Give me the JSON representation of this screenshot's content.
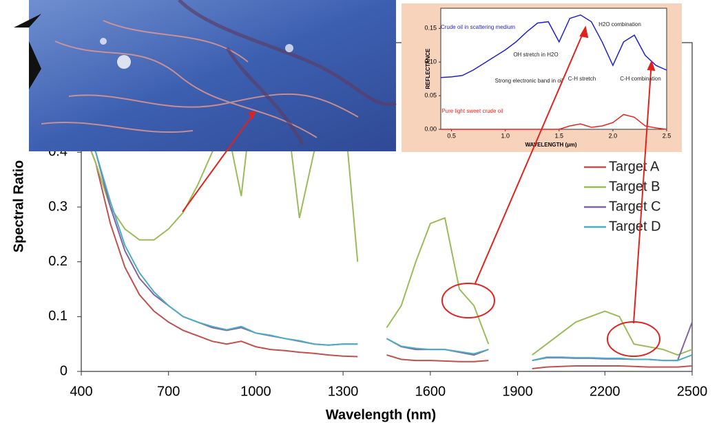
{
  "chart_data": [
    {
      "type": "line",
      "y_label": "Spectral Ratio",
      "x_label": "Wavelength (nm)",
      "x": [
        400,
        450,
        500,
        550,
        600,
        650,
        700,
        750,
        800,
        850,
        900,
        950,
        1000,
        1050,
        1100,
        1150,
        1200,
        1250,
        1300,
        1350,
        1400,
        1450,
        1500,
        1550,
        1600,
        1650,
        1700,
        1750,
        1800,
        1850,
        1900,
        1950,
        2000,
        2050,
        2100,
        2150,
        2200,
        2250,
        2300,
        2350,
        2400,
        2450,
        2500
      ],
      "series": [
        {
          "name": "Target A",
          "color": "#c0504d",
          "values": [
            0.45,
            0.38,
            0.27,
            0.19,
            0.14,
            0.11,
            0.09,
            0.075,
            0.065,
            0.055,
            0.05,
            0.055,
            0.045,
            0.04,
            0.038,
            0.035,
            0.033,
            0.03,
            0.028,
            0.027,
            null,
            0.03,
            0.022,
            0.02,
            0.02,
            0.019,
            0.018,
            0.018,
            0.02,
            null,
            null,
            0.005,
            0.008,
            0.009,
            0.01,
            0.01,
            0.01,
            0.01,
            0.009,
            0.008,
            0.008,
            0.008,
            0.01
          ]
        },
        {
          "name": "Target B",
          "color": "#9bbb59",
          "values": [
            0.45,
            0.38,
            0.3,
            0.26,
            0.24,
            0.24,
            0.26,
            0.29,
            0.34,
            0.4,
            0.45,
            0.32,
            0.55,
            0.55,
            0.5,
            0.28,
            0.4,
            0.45,
            0.5,
            0.2,
            null,
            0.08,
            0.12,
            0.2,
            0.27,
            0.28,
            0.15,
            0.12,
            0.05,
            null,
            null,
            0.03,
            0.05,
            0.07,
            0.09,
            0.1,
            0.11,
            0.1,
            0.05,
            0.045,
            0.04,
            0.03,
            0.04
          ]
        },
        {
          "name": "Target C",
          "color": "#8064a2",
          "values": [
            0.45,
            0.4,
            0.3,
            0.22,
            0.17,
            0.14,
            0.12,
            0.1,
            0.09,
            0.08,
            0.075,
            0.08,
            0.07,
            0.065,
            0.06,
            0.055,
            0.05,
            0.048,
            0.05,
            0.05,
            null,
            0.06,
            0.045,
            0.04,
            0.04,
            0.04,
            0.035,
            0.03,
            0.04,
            null,
            null,
            0.02,
            0.025,
            0.025,
            0.024,
            0.024,
            0.023,
            0.023,
            0.022,
            0.022,
            0.02,
            0.02,
            0.09
          ]
        },
        {
          "name": "Target D",
          "color": "#4bacc6",
          "values": [
            0.45,
            0.4,
            0.31,
            0.23,
            0.18,
            0.145,
            0.12,
            0.1,
            0.09,
            0.082,
            0.076,
            0.082,
            0.07,
            0.066,
            0.06,
            0.056,
            0.05,
            0.048,
            0.05,
            0.05,
            null,
            0.06,
            0.046,
            0.042,
            0.04,
            0.04,
            0.036,
            0.032,
            0.04,
            null,
            null,
            0.02,
            0.026,
            0.026,
            0.025,
            0.025,
            0.024,
            0.024,
            0.022,
            0.022,
            0.02,
            0.02,
            0.03
          ]
        }
      ],
      "xlim": [
        400,
        2500
      ],
      "ylim": [
        0,
        0.6
      ],
      "xticks": [
        400,
        700,
        1000,
        1300,
        1600,
        1900,
        2200,
        2500
      ],
      "yticks": [
        0,
        0.1,
        0.2,
        0.3,
        0.4
      ],
      "legend": "right"
    },
    {
      "type": "line",
      "y_label": "REFLECTANCE",
      "x_label": "WAVELENGTH (µm)",
      "x": [
        0.4,
        0.5,
        0.6,
        0.7,
        0.8,
        0.9,
        1.0,
        1.1,
        1.2,
        1.3,
        1.4,
        1.5,
        1.6,
        1.7,
        1.8,
        1.9,
        2.0,
        2.1,
        2.2,
        2.3,
        2.4,
        2.5
      ],
      "series": [
        {
          "name": "Crude oil in scattering medium",
          "color": "#1f1fd6",
          "values": [
            0.077,
            0.078,
            0.08,
            0.088,
            0.098,
            0.108,
            0.118,
            0.13,
            0.145,
            0.158,
            0.16,
            0.13,
            0.165,
            0.17,
            0.16,
            0.13,
            0.095,
            0.13,
            0.14,
            0.11,
            0.095,
            0.088
          ]
        },
        {
          "name": "Pure light sweet crude oil",
          "color": "#e8231f",
          "values": [
            0,
            0,
            0,
            0,
            0,
            0,
            0,
            0,
            0,
            0,
            0,
            0,
            0.005,
            0.008,
            0.003,
            0.005,
            0.01,
            0.022,
            0.018,
            0.005,
            0.002,
            0
          ]
        }
      ],
      "xlim": [
        0.4,
        2.5
      ],
      "ylim": [
        0,
        0.18
      ],
      "xticks": [
        0.5,
        {
          "value": 1.0,
          "label": "1.0"
        },
        1.5,
        {
          "value": 2.0,
          "label": "2.0"
        },
        2.5
      ],
      "yticks": [
        {
          "value": 0,
          "label": "0.00"
        },
        {
          "value": 0.05,
          "label": "0.05"
        },
        {
          "value": 0.1,
          "label": "0.10"
        },
        {
          "value": 0.15,
          "label": "0.15"
        }
      ],
      "annotations": [
        "OH stretch in H2O",
        "Strong electronic band in oil",
        "C-H stretch",
        "H2O combination",
        "C-H combination"
      ]
    }
  ]
}
